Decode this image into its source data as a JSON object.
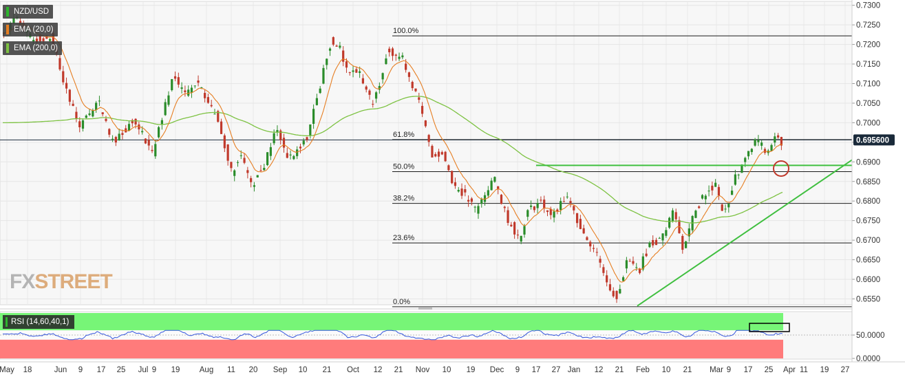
{
  "chart_data": {
    "type": "candlestick",
    "symbol": "NZD/USD",
    "indicators": [
      "EMA (20,0)",
      "EMA (200,0)"
    ],
    "price_axis": {
      "min": 0.6535,
      "max": 0.731,
      "ticks": [
        "0.7300",
        "0.7250",
        "0.7200",
        "0.7150",
        "0.7100",
        "0.7050",
        "0.7000",
        "0.6950",
        "0.6900",
        "0.6850",
        "0.6800",
        "0.6750",
        "0.6700",
        "0.6650",
        "0.6600",
        "0.6550"
      ],
      "tick_values": [
        0.73,
        0.725,
        0.72,
        0.715,
        0.71,
        0.705,
        0.7,
        0.695,
        0.69,
        0.685,
        0.68,
        0.675,
        0.67,
        0.665,
        0.66,
        0.655
      ]
    },
    "current_price": "0.695600",
    "current_price_value": 0.6956,
    "fibonacci": [
      {
        "label": "100.0%",
        "value": 0.7222
      },
      {
        "label": "61.8%",
        "value": 0.6957
      },
      {
        "label": "50.0%",
        "value": 0.6875
      },
      {
        "label": "38.2%",
        "value": 0.6794
      },
      {
        "label": "23.6%",
        "value": 0.6693
      },
      {
        "label": "0.0%",
        "value": 0.653
      }
    ],
    "x_axis": {
      "labels": [
        "May",
        "18",
        "Jun",
        "9",
        "17",
        "25",
        "Jul",
        "9",
        "19",
        "Aug",
        "11",
        "20",
        "Sep",
        "10",
        "21",
        "Oct",
        "12",
        "21",
        "Nov",
        "10",
        "19",
        "Dec",
        "9",
        "17",
        "27",
        "Jan",
        "12",
        "21",
        "Feb",
        "10",
        "21",
        "Mar",
        "9",
        "17",
        "25",
        "Apr",
        "11",
        "19",
        "27"
      ]
    },
    "rsi": {
      "label": "RSI (14,60,40,1)",
      "ticks": [
        "50.0000",
        "0.0000"
      ]
    },
    "colors": {
      "up": "#2a8c2a",
      "down": "#c0392b",
      "ema20": "#e67e22",
      "ema200": "#7dc242",
      "trend": "#3fbf3f",
      "rsi_line": "#3355dd",
      "rsi_upper": "#77f577",
      "rsi_lower": "#ff7b7b",
      "price_badge": "#1a2a3a"
    }
  },
  "legend": {
    "symbol": "NZD/USD",
    "ema20": "EMA (20,0)",
    "ema200": "EMA (200,0)"
  },
  "rsi_label": "RSI (14,60,40,1)",
  "logo": {
    "fx": "FX",
    "street": "STREET"
  }
}
